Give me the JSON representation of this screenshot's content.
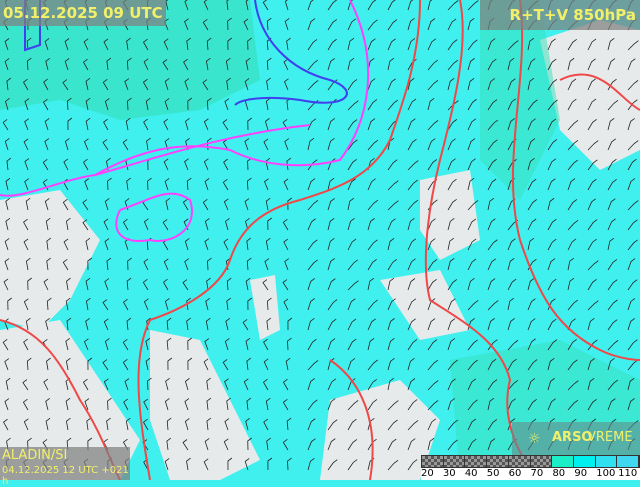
{
  "header": {
    "valid_time": "05.12.2025 09 UTC",
    "parameter": "R+T+V 850hPa"
  },
  "footer": {
    "model": "ALADIN/SI",
    "run": "04.12.2025 12 UTC +021 h"
  },
  "logo": {
    "bold": "ARSO",
    "light": "VREME",
    "icon": "sun-icon"
  },
  "legend": {
    "values": [
      "20",
      "30",
      "40",
      "50",
      "60",
      "70",
      "80",
      "90",
      "100",
      "110"
    ],
    "colors": [
      "checker",
      "checker",
      "checker",
      "checker",
      "checker",
      "checker",
      "#1af0c8",
      "#00f0f0",
      "#30e0f0",
      "#40d8f0"
    ]
  },
  "colors": {
    "humid_fill": "#3ff0ee",
    "teal_fill": "#36e0b8",
    "land_light": "#e8ecec",
    "isotherm_warm": "#f04848",
    "isotherm_zero": "#ff40ff",
    "isotherm_cold": "#4040f0"
  }
}
